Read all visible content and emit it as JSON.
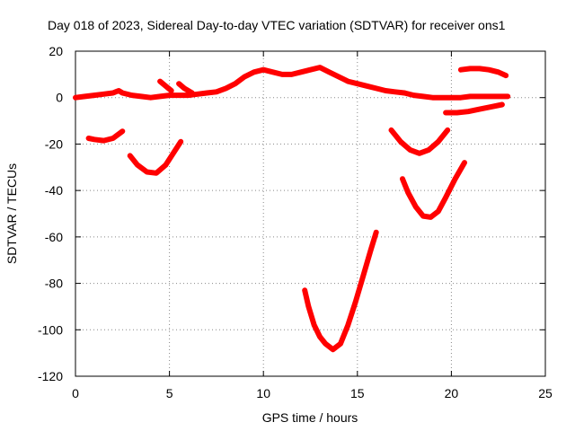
{
  "chart_data": {
    "type": "scatter",
    "title": "Day 018 of 2023, Sidereal Day-to-day VTEC variation (SDTVAR) for receiver ons1",
    "xlabel": "GPS time / hours",
    "ylabel": "SDTVAR / TECUs",
    "xlim": [
      0,
      25
    ],
    "ylim": [
      -120,
      20
    ],
    "xticks": [
      "0",
      "5",
      "10",
      "15",
      "20",
      "25"
    ],
    "yticks": [
      "20",
      "0",
      "-20",
      "-40",
      "-60",
      "-80",
      "-100",
      "-120"
    ],
    "grid": true,
    "legend": "none",
    "color": "#ff0000",
    "series": [
      {
        "name": "seg-main-1",
        "x": [
          0,
          0.5,
          1,
          1.5,
          2,
          2.3,
          2.5,
          3,
          3.5,
          4,
          4.5,
          5,
          5.5,
          6,
          6.5,
          7,
          7.5,
          8,
          8.5,
          9,
          9.5,
          10,
          10.5,
          11,
          11.5,
          12,
          12.5,
          13,
          13.5,
          14,
          14.5,
          15,
          15.5,
          16,
          16.5,
          17,
          17.5
        ],
        "y": [
          0,
          0.5,
          1,
          1.5,
          2,
          3,
          2,
          1,
          0.5,
          0,
          0.5,
          1,
          1,
          1,
          1.5,
          2,
          2.5,
          4,
          6,
          9,
          11,
          12,
          11,
          10,
          10,
          11,
          12,
          13,
          11,
          9,
          7,
          6,
          5,
          4,
          3,
          2.5,
          2
        ]
      },
      {
        "name": "seg-main-2",
        "x": [
          17.5,
          18,
          18.5,
          19,
          19.5,
          20,
          20.5,
          21,
          21.5,
          22,
          22.5,
          23
        ],
        "y": [
          2,
          1,
          0.5,
          0,
          0,
          0,
          0,
          0.5,
          0.5,
          0.5,
          0.5,
          0.5
        ]
      },
      {
        "name": "seg-4.5",
        "x": [
          4.5,
          4.8,
          5.1
        ],
        "y": [
          7,
          5,
          3
        ]
      },
      {
        "name": "seg-5.5",
        "x": [
          5.5,
          5.8,
          6.2
        ],
        "y": [
          6,
          4,
          2
        ]
      },
      {
        "name": "seg-a",
        "x": [
          0.7,
          1.0,
          1.5,
          2.0,
          2.5
        ],
        "y": [
          -17.5,
          -18,
          -18.5,
          -17.5,
          -14.5
        ]
      },
      {
        "name": "seg-b",
        "x": [
          2.9,
          3.3,
          3.8,
          4.3,
          4.8,
          5.2,
          5.6
        ],
        "y": [
          -25,
          -29,
          -32,
          -32.5,
          -29,
          -24,
          -19
        ]
      },
      {
        "name": "seg-c",
        "x": [
          12.2,
          12.4,
          12.7,
          13.0,
          13.3,
          13.7,
          14.1,
          14.5,
          14.9,
          15.3,
          15.7,
          16.0
        ],
        "y": [
          -83,
          -90,
          -98,
          -103,
          -106,
          -108.5,
          -106,
          -98,
          -88,
          -77,
          -66,
          -58
        ]
      },
      {
        "name": "seg-d",
        "x": [
          16.8,
          17.3,
          17.8,
          18.3,
          18.8,
          19.3,
          19.8
        ],
        "y": [
          -14,
          -19,
          -22.5,
          -24,
          -22.5,
          -19,
          -14
        ]
      },
      {
        "name": "seg-e",
        "x": [
          17.4,
          17.7,
          18.1,
          18.5,
          18.9,
          19.3,
          19.7,
          20.2,
          20.7
        ],
        "y": [
          -35,
          -41,
          -47,
          -51,
          -51.5,
          -49,
          -43,
          -35,
          -28
        ]
      },
      {
        "name": "seg-f",
        "x": [
          19.7,
          20.3,
          20.9,
          21.5,
          22.1,
          22.7
        ],
        "y": [
          -6.5,
          -6.5,
          -6,
          -5,
          -4,
          -3
        ]
      },
      {
        "name": "seg-g",
        "x": [
          20.5,
          21.0,
          21.5,
          22.0,
          22.5,
          22.9
        ],
        "y": [
          12,
          12.5,
          12.5,
          12,
          11,
          9.5
        ]
      }
    ]
  }
}
